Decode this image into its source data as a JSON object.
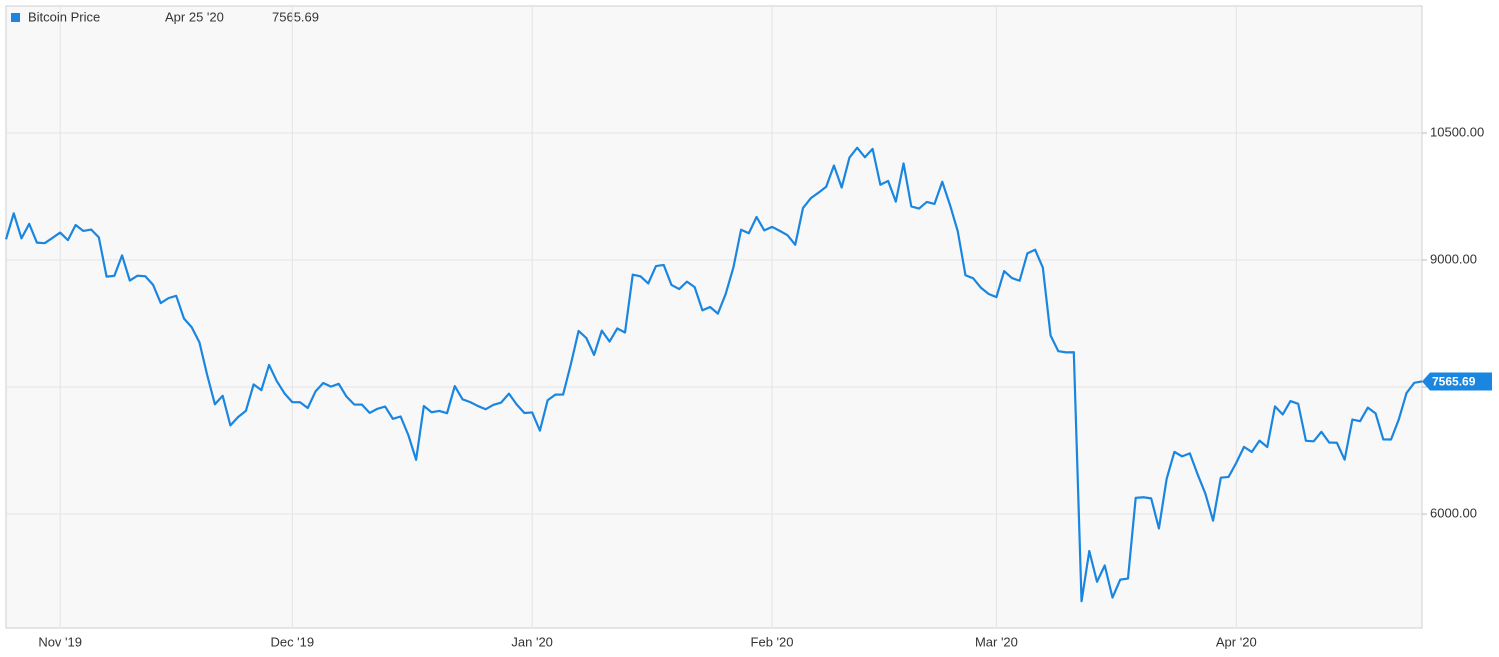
{
  "chart_data": {
    "type": "line",
    "last_date": "Apr 25 '20",
    "categories": [
      null,
      null,
      null,
      null,
      null,
      null,
      null,
      "Nov '19",
      null,
      null,
      null,
      null,
      null,
      null,
      null,
      null,
      null,
      null,
      null,
      null,
      null,
      null,
      null,
      null,
      null,
      null,
      null,
      null,
      null,
      null,
      null,
      null,
      null,
      null,
      null,
      null,
      null,
      "Dec '19",
      null,
      null,
      null,
      null,
      null,
      null,
      null,
      null,
      null,
      null,
      null,
      null,
      null,
      null,
      null,
      null,
      null,
      null,
      null,
      null,
      null,
      null,
      null,
      null,
      null,
      null,
      null,
      null,
      null,
      null,
      "Jan '20",
      null,
      null,
      null,
      null,
      null,
      null,
      null,
      null,
      null,
      null,
      null,
      null,
      null,
      null,
      null,
      null,
      null,
      null,
      null,
      null,
      null,
      null,
      null,
      null,
      null,
      null,
      null,
      null,
      null,
      null,
      "Feb '20",
      null,
      null,
      null,
      null,
      null,
      null,
      null,
      null,
      null,
      null,
      null,
      null,
      null,
      null,
      null,
      null,
      null,
      null,
      null,
      null,
      null,
      null,
      null,
      null,
      null,
      null,
      null,
      null,
      "Mar '20",
      null,
      null,
      null,
      null,
      null,
      null,
      null,
      null,
      null,
      null,
      null,
      null,
      null,
      null,
      null,
      null,
      null,
      null,
      null,
      null,
      null,
      null,
      null,
      null,
      null,
      null,
      null,
      null,
      null,
      null,
      "Apr '20",
      null,
      null,
      null,
      null,
      null,
      null,
      null,
      null,
      null,
      null,
      null,
      null,
      null,
      null,
      null,
      null,
      null,
      null,
      null,
      null,
      null,
      null,
      null,
      null
    ],
    "series": [
      {
        "name": "Bitcoin Price",
        "color": "#1a86e0",
        "values": [
          9244,
          9551,
          9256,
          9427,
          9205,
          9199,
          9261,
          9324,
          9235,
          9413,
          9343,
          9360,
          9267,
          8804,
          8813,
          9055,
          8757,
          8815,
          8808,
          8708,
          8491,
          8550,
          8577,
          8309,
          8206,
          8027,
          7642,
          7296,
          7397,
          7047,
          7146,
          7218,
          7531,
          7463,
          7761,
          7569,
          7424,
          7322,
          7320,
          7252,
          7448,
          7547,
          7505,
          7538,
          7388,
          7294,
          7292,
          7194,
          7243,
          7269,
          7124,
          7152,
          6932,
          6640,
          7276,
          7202,
          7218,
          7191,
          7511,
          7355,
          7322,
          7275,
          7238,
          7290,
          7317,
          7422,
          7293,
          7193,
          7200,
          6985,
          7344,
          7410,
          7411,
          7769,
          8163,
          8079,
          7879,
          8166,
          8037,
          8192,
          8144,
          8827,
          8807,
          8723,
          8929,
          8942,
          8706,
          8657,
          8745,
          8680,
          8406,
          8445,
          8367,
          8596,
          8909,
          9358,
          9316,
          9508,
          9350,
          9392,
          9344,
          9293,
          9180,
          9613,
          9729,
          9795,
          9865,
          10116,
          9856,
          10208,
          10326,
          10214,
          10312,
          9889,
          9934,
          9690,
          10141,
          9633,
          9608,
          9686,
          9663,
          9924,
          9650,
          9341,
          8820,
          8784,
          8672,
          8599,
          8562,
          8869,
          8787,
          8755,
          9078,
          9122,
          8909,
          8108,
          7923,
          7909,
          7911,
          4970,
          5563,
          5200,
          5392,
          5014,
          5225,
          5238,
          6191,
          6198,
          6185,
          5830,
          6416,
          6734,
          6681,
          6716,
          6469,
          6242,
          5922,
          6429,
          6438,
          6606,
          6793,
          6733,
          6867,
          6791,
          7271,
          7176,
          7334,
          7302,
          6865,
          6859,
          6971,
          6845,
          6842,
          6642,
          7116,
          7096,
          7257,
          7189,
          6881,
          6880,
          7117,
          7429,
          7550,
          7565.69
        ]
      }
    ],
    "ylim": [
      4654,
      12000
    ],
    "yticks": [
      {
        "value": 6000,
        "label": "6000.00"
      },
      7500,
      {
        "value": 9000,
        "label": "9000.00"
      },
      {
        "value": 10500,
        "label": "10500.00"
      }
    ],
    "grid": true
  }
}
